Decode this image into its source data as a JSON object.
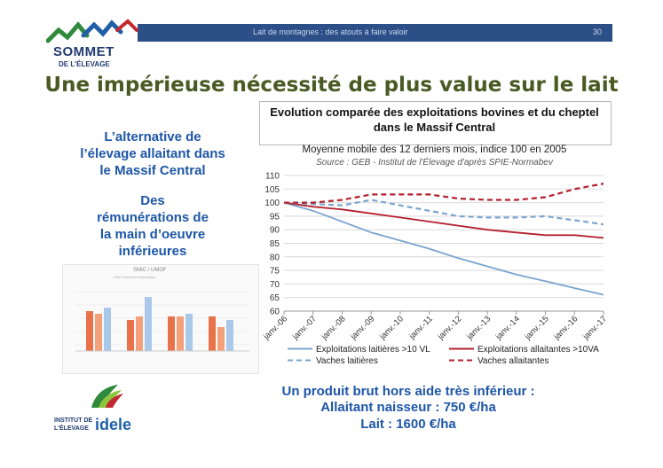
{
  "banner": {
    "text": "Lait de montagnes : des atouts à faire valoir",
    "slide_number": "30"
  },
  "logo": {
    "name": "SOMMET",
    "subtitle": "DE L'ÉLEVAGE"
  },
  "slide_title": "Une impérieuse nécessité de plus value sur le lait",
  "left_text": {
    "block1": [
      "L’alternative de",
      "l’élevage allaitant dans",
      "le Massif Central"
    ],
    "block2": [
      "Des",
      "rémunérations de",
      "la main d’oeuvre",
      "inférieures"
    ]
  },
  "inset_chart": {
    "title": "SMIC / UMOF",
    "subtitle": "EMOT/ha/chef exploitation"
  },
  "chart_data": {
    "type": "line",
    "title": "Evolution comparée des exploitations bovines et du cheptel dans le Massif Central",
    "subtitle": "Moyenne mobile des 12 derniers mois, indice 100 en 2005",
    "source": "Source : GEB - Institut de l'Élevage d'après SPIE-Normabev",
    "x": [
      "janv.-06",
      "janv.-07",
      "janv.-08",
      "janv.-09",
      "janv.-10",
      "janv.-11",
      "janv.-12",
      "janv.-13",
      "janv.-14",
      "janv.-15",
      "janv.-16",
      "janv.-17"
    ],
    "ylim": [
      60,
      110
    ],
    "yticks": [
      "60",
      "65",
      "70",
      "75",
      "80",
      "85",
      "90",
      "95",
      "100",
      "105",
      "110"
    ],
    "legend_position": "bottom",
    "series": [
      {
        "name": "Exploitations laitières >10 VL",
        "color": "#7ba3cf",
        "dash": "solid",
        "values": [
          100,
          97,
          93,
          89,
          86,
          83,
          79.5,
          76.5,
          73.5,
          71,
          68.5,
          66
        ]
      },
      {
        "name": "Exploitations allaitantes >10VA",
        "color": "#b4202e",
        "dash": "solid",
        "values": [
          100,
          98.5,
          97.5,
          96,
          94.5,
          93,
          91.5,
          90,
          89,
          88,
          88,
          87
        ]
      },
      {
        "name": "Vaches laitières",
        "color": "#7ba3cf",
        "dash": "dashed",
        "values": [
          100,
          99.5,
          99,
          101,
          99,
          97,
          95,
          94.5,
          94.5,
          95,
          93.5,
          92
        ]
      },
      {
        "name": "Vaches allaitantes",
        "color": "#b4202e",
        "dash": "dashed",
        "values": [
          100,
          100,
          101,
          103,
          103,
          103,
          101.5,
          101,
          101,
          102,
          105,
          107
        ]
      }
    ]
  },
  "bottom_text": {
    "line1": "Un produit brut hors aide très inférieur :",
    "line2": "Allaitant naisseur : 750 €/ha",
    "line3": "Lait : 1600 €/ha"
  },
  "idele_logo": {
    "line1": "INSTITUT DE",
    "line2": "L'ÉLEVAGE",
    "brand": "idele"
  }
}
